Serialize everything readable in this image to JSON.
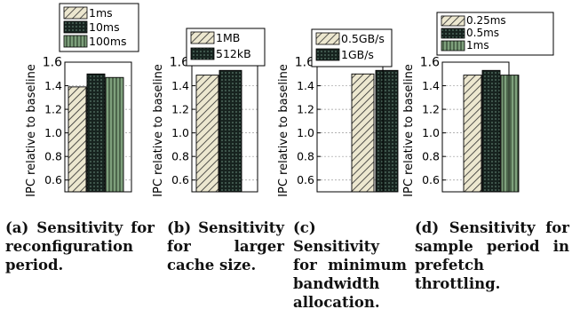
{
  "colors": {
    "light": "#ece7cf",
    "dark": "#17231f",
    "green": "#7ea07c",
    "grid": "#9a9a9a"
  },
  "chart_data": [
    {
      "type": "bar",
      "categories": [
        ""
      ],
      "series": [
        {
          "name": "1ms",
          "values": [
            1.39
          ],
          "pattern": "diagonal-hatch-light"
        },
        {
          "name": "10ms",
          "values": [
            1.5
          ],
          "pattern": "dark-dots"
        },
        {
          "name": "100ms",
          "values": [
            1.47
          ],
          "pattern": "vertical-stripes-green"
        }
      ],
      "ylabel": "IPC relative to baseline",
      "ylim": [
        0.5,
        1.6
      ],
      "yticks": [
        "0.6",
        "0.8",
        "1.0",
        "1.2",
        "1.4",
        "1.6"
      ],
      "grid": true,
      "legend": "top-left",
      "caption": "(a) Sensitivity for reconfiguration period."
    },
    {
      "type": "bar",
      "categories": [
        ""
      ],
      "series": [
        {
          "name": "1MB",
          "values": [
            1.49
          ],
          "pattern": "diagonal-hatch-light"
        },
        {
          "name": "512kB",
          "values": [
            1.53
          ],
          "pattern": "dark-dots"
        }
      ],
      "ylabel": "IPC relative to baseline",
      "ylim": [
        0.5,
        1.6
      ],
      "yticks": [
        "0.6",
        "0.8",
        "1.0",
        "1.2",
        "1.4",
        "1.6"
      ],
      "grid": true,
      "legend": "top-left",
      "caption": "(b) Sensitivity for larger cache size."
    },
    {
      "type": "bar",
      "categories": [
        ""
      ],
      "series": [
        {
          "name": "0.5GB/s",
          "values": [
            1.5
          ],
          "pattern": "diagonal-hatch-light"
        },
        {
          "name": "1GB/s",
          "values": [
            1.53
          ],
          "pattern": "dark-dots"
        }
      ],
      "ylabel": "IPC relative to baseline",
      "ylim": [
        0.5,
        1.6
      ],
      "yticks": [
        "0.6",
        "0.8",
        "1.0",
        "1.2",
        "1.4",
        "1.6"
      ],
      "grid": true,
      "legend": "top-left",
      "caption": "(c) Sensitivity for minimum bandwidth allocation."
    },
    {
      "type": "bar",
      "categories": [
        ""
      ],
      "series": [
        {
          "name": "0.25ms",
          "values": [
            1.49
          ],
          "pattern": "diagonal-hatch-light"
        },
        {
          "name": "0.5ms",
          "values": [
            1.53
          ],
          "pattern": "dark-dots"
        },
        {
          "name": "1ms",
          "values": [
            1.49
          ],
          "pattern": "vertical-stripes-green"
        }
      ],
      "ylabel": "IPC relative to baseline",
      "ylim": [
        0.5,
        1.6
      ],
      "yticks": [
        "0.6",
        "0.8",
        "1.0",
        "1.2",
        "1.4",
        "1.6"
      ],
      "grid": true,
      "legend": "top-left",
      "caption": "(d) Sensitivity for sample period in prefetch throttling."
    }
  ]
}
